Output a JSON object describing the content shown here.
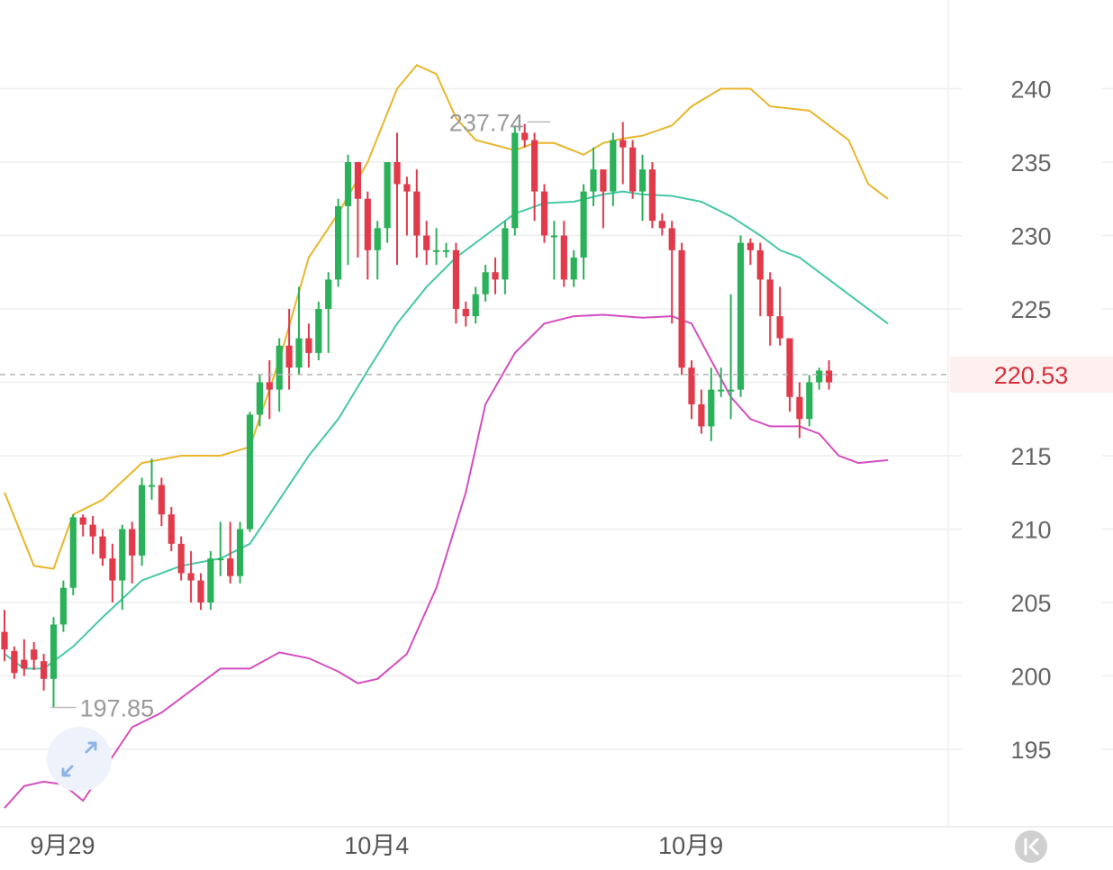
{
  "colors": {
    "up": "#2ab15a",
    "down": "#e03a4b",
    "upper_band": "#e8b62b",
    "middle_band": "#45c8a6",
    "lower_band": "#d44ec0",
    "grid": "#eeeeee",
    "price_line": "#b5b5b5",
    "price_text": "#d6303d",
    "price_tag_bg": "#fdf0ef"
  },
  "icons": {
    "expand": "expand-arrows-icon",
    "collapse": "collapse-left-icon"
  },
  "chart_data": {
    "type": "candlestick",
    "ylim": [
      190,
      245
    ],
    "yticks": [
      "240",
      "235",
      "230",
      "225",
      "215",
      "210",
      "205",
      "200",
      "195"
    ],
    "xticks": [
      {
        "label": "9月29",
        "index": 5
      },
      {
        "label": "10月4",
        "index": 37
      },
      {
        "label": "10月9",
        "index": 69
      }
    ],
    "current_price": "220.53",
    "annotations": {
      "high": {
        "text": "237.74",
        "value": 237.74,
        "index": 56
      },
      "low": {
        "text": "197.85",
        "value": 197.85,
        "index": 4
      }
    },
    "candles": [
      [
        203.0,
        201.8,
        204.5,
        201.0
      ],
      [
        201.7,
        200.2,
        202.0,
        199.8
      ],
      [
        201.1,
        200.5,
        202.5,
        200.0
      ],
      [
        201.8,
        201.1,
        202.3,
        200.4
      ],
      [
        201.0,
        199.8,
        201.5,
        199.0
      ],
      [
        199.8,
        203.5,
        204.0,
        197.85
      ],
      [
        203.5,
        206.0,
        206.5,
        203.0
      ],
      [
        206.0,
        210.8,
        211.0,
        205.5
      ],
      [
        210.8,
        210.3,
        211.0,
        209.5
      ],
      [
        210.3,
        209.5,
        210.9,
        208.3
      ],
      [
        209.5,
        208.0,
        210.0,
        207.5
      ],
      [
        208.0,
        206.5,
        209.0,
        205.0
      ],
      [
        206.5,
        210.0,
        210.3,
        204.5
      ],
      [
        210.0,
        208.2,
        210.5,
        206.3
      ],
      [
        208.2,
        213.0,
        213.5,
        207.5
      ],
      [
        213.0,
        213.0,
        214.8,
        212.0
      ],
      [
        213.0,
        211.0,
        213.5,
        210.2
      ],
      [
        211.0,
        209.0,
        211.5,
        208.5
      ],
      [
        209.0,
        207.0,
        209.5,
        206.5
      ],
      [
        207.0,
        206.5,
        208.5,
        205.0
      ],
      [
        206.5,
        205.0,
        207.0,
        204.5
      ],
      [
        205.0,
        208.0,
        208.5,
        204.5
      ],
      [
        208.0,
        208.0,
        210.5,
        206.8
      ],
      [
        208.0,
        206.8,
        210.5,
        206.3
      ],
      [
        206.8,
        210.0,
        210.5,
        206.3
      ],
      [
        210.0,
        217.8,
        218.0,
        209.8
      ],
      [
        217.8,
        220.0,
        220.5,
        217.0
      ],
      [
        220.0,
        219.5,
        221.5,
        217.5
      ],
      [
        219.5,
        222.5,
        223.0,
        218.0
      ],
      [
        222.5,
        221.0,
        225.0,
        219.5
      ],
      [
        221.0,
        223.0,
        226.5,
        220.5
      ],
      [
        223.0,
        222.0,
        224.0,
        221.0
      ],
      [
        222.0,
        225.0,
        225.5,
        221.5
      ],
      [
        225.0,
        227.0,
        227.5,
        222.0
      ],
      [
        227.0,
        232.0,
        232.5,
        226.5
      ],
      [
        232.0,
        235.0,
        235.5,
        228.0
      ],
      [
        235.0,
        232.5,
        235.0,
        228.5
      ],
      [
        232.5,
        229.0,
        233.0,
        227.0
      ],
      [
        229.0,
        230.5,
        231.0,
        227.0
      ],
      [
        230.5,
        235.0,
        235.0,
        229.5
      ],
      [
        235.0,
        233.5,
        237.0,
        228.0
      ],
      [
        233.5,
        233.0,
        234.0,
        230.0
      ],
      [
        233.0,
        230.0,
        234.5,
        228.5
      ],
      [
        230.0,
        229.0,
        231.0,
        228.0
      ],
      [
        229.0,
        229.0,
        230.5,
        228.0
      ],
      [
        229.0,
        229.0,
        229.5,
        228.5
      ],
      [
        229.0,
        225.0,
        229.5,
        224.0
      ],
      [
        225.0,
        224.5,
        225.5,
        223.8
      ],
      [
        224.5,
        226.0,
        226.5,
        224.0
      ],
      [
        226.0,
        227.5,
        228.0,
        225.5
      ],
      [
        227.5,
        227.0,
        228.5,
        226.0
      ],
      [
        227.0,
        230.5,
        231.0,
        226.0
      ],
      [
        230.5,
        237.0,
        237.5,
        230.0
      ],
      [
        237.0,
        236.5,
        237.6,
        236.0
      ],
      [
        236.5,
        233.0,
        237.0,
        231.0
      ],
      [
        233.0,
        230.0,
        233.5,
        229.5
      ],
      [
        230.0,
        230.0,
        231.0,
        227.0
      ],
      [
        230.0,
        227.0,
        231.0,
        226.5
      ],
      [
        227.0,
        228.5,
        229.0,
        226.5
      ],
      [
        228.5,
        233.0,
        233.5,
        227.0
      ],
      [
        233.0,
        234.5,
        236.0,
        232.0
      ],
      [
        234.5,
        233.0,
        234.5,
        230.5
      ],
      [
        233.0,
        236.5,
        237.0,
        232.0
      ],
      [
        236.5,
        236.0,
        237.74,
        233.5
      ],
      [
        236.0,
        233.0,
        236.5,
        232.5
      ],
      [
        233.0,
        234.5,
        235.5,
        231.0
      ],
      [
        234.5,
        231.0,
        235.0,
        230.5
      ],
      [
        231.0,
        230.5,
        231.5,
        230.0
      ],
      [
        230.5,
        229.0,
        231.0,
        224.0
      ],
      [
        229.0,
        221.0,
        229.5,
        220.5
      ],
      [
        221.0,
        218.5,
        221.5,
        217.5
      ],
      [
        218.5,
        217.0,
        219.5,
        216.5
      ],
      [
        217.0,
        219.5,
        221.0,
        216.0
      ],
      [
        219.5,
        219.5,
        221.0,
        219.0
      ],
      [
        219.5,
        219.5,
        226.0,
        217.5
      ],
      [
        219.5,
        229.5,
        230.0,
        219.0
      ],
      [
        229.5,
        229.0,
        229.8,
        228.0
      ],
      [
        229.0,
        227.0,
        229.5,
        224.5
      ],
      [
        227.0,
        224.5,
        227.5,
        222.5
      ],
      [
        224.5,
        223.0,
        226.5,
        222.5
      ],
      [
        223.0,
        219.0,
        223.0,
        218.0
      ],
      [
        219.0,
        217.5,
        220.0,
        216.2
      ],
      [
        217.5,
        220.0,
        220.5,
        217.0
      ],
      [
        220.0,
        220.8,
        221.0,
        219.5
      ],
      [
        220.8,
        220.0,
        221.5,
        219.5
      ]
    ],
    "bollinger": {
      "upper": [
        [
          0,
          212.5
        ],
        [
          3,
          207.5
        ],
        [
          5,
          207.3
        ],
        [
          7,
          211.0
        ],
        [
          10,
          212.0
        ],
        [
          14,
          214.5
        ],
        [
          18,
          215.0
        ],
        [
          22,
          215.0
        ],
        [
          25,
          215.6
        ],
        [
          28,
          221.5
        ],
        [
          31,
          228.5
        ],
        [
          34,
          231.5
        ],
        [
          37,
          235.0
        ],
        [
          40,
          240.0
        ],
        [
          42,
          241.6
        ],
        [
          44,
          241.0
        ],
        [
          46,
          238.0
        ],
        [
          48,
          236.5
        ],
        [
          52,
          235.8
        ],
        [
          54,
          236.3
        ],
        [
          56,
          236.3
        ],
        [
          59,
          235.5
        ],
        [
          61,
          236.3
        ],
        [
          63,
          236.6
        ],
        [
          65,
          236.8
        ],
        [
          68,
          237.5
        ],
        [
          70,
          238.8
        ],
        [
          73,
          240.0
        ],
        [
          76,
          240.0
        ],
        [
          78,
          238.8
        ],
        [
          82,
          238.5
        ],
        [
          86,
          236.5
        ],
        [
          88,
          233.5
        ],
        [
          90,
          232.5
        ]
      ],
      "middle": [
        [
          0,
          201.5
        ],
        [
          2,
          200.5
        ],
        [
          4,
          200.5
        ],
        [
          7,
          202.0
        ],
        [
          10,
          204.0
        ],
        [
          14,
          206.5
        ],
        [
          18,
          207.5
        ],
        [
          22,
          208.0
        ],
        [
          25,
          209.0
        ],
        [
          28,
          212.0
        ],
        [
          31,
          215.0
        ],
        [
          34,
          217.5
        ],
        [
          37,
          220.8
        ],
        [
          40,
          224.0
        ],
        [
          43,
          226.5
        ],
        [
          46,
          228.5
        ],
        [
          49,
          230.0
        ],
        [
          52,
          231.5
        ],
        [
          55,
          232.2
        ],
        [
          58,
          232.3
        ],
        [
          61,
          232.8
        ],
        [
          63,
          233.0
        ],
        [
          65,
          232.8
        ],
        [
          68,
          232.7
        ],
        [
          71,
          232.3
        ],
        [
          74,
          231.3
        ],
        [
          77,
          230.0
        ],
        [
          79,
          229.0
        ],
        [
          81,
          228.5
        ],
        [
          84,
          227.0
        ],
        [
          87,
          225.5
        ],
        [
          90,
          224.0
        ]
      ],
      "lower": [
        [
          0,
          191.0
        ],
        [
          2,
          192.5
        ],
        [
          4,
          192.8
        ],
        [
          6,
          192.6
        ],
        [
          8,
          191.5
        ],
        [
          10,
          193.5
        ],
        [
          13,
          196.5
        ],
        [
          16,
          197.5
        ],
        [
          19,
          199.0
        ],
        [
          22,
          200.5
        ],
        [
          25,
          200.5
        ],
        [
          28,
          201.6
        ],
        [
          31,
          201.2
        ],
        [
          34,
          200.3
        ],
        [
          36,
          199.5
        ],
        [
          38,
          199.8
        ],
        [
          41,
          201.5
        ],
        [
          44,
          206.0
        ],
        [
          47,
          212.5
        ],
        [
          49,
          218.5
        ],
        [
          52,
          222.0
        ],
        [
          55,
          224.0
        ],
        [
          58,
          224.5
        ],
        [
          61,
          224.6
        ],
        [
          63,
          224.5
        ],
        [
          65,
          224.4
        ],
        [
          68,
          224.5
        ],
        [
          70,
          224.0
        ],
        [
          72,
          221.5
        ],
        [
          74,
          219.0
        ],
        [
          76,
          217.5
        ],
        [
          78,
          217.0
        ],
        [
          81,
          217.0
        ],
        [
          83,
          216.5
        ],
        [
          85,
          215.0
        ],
        [
          87,
          214.5
        ],
        [
          90,
          214.7
        ]
      ]
    }
  }
}
